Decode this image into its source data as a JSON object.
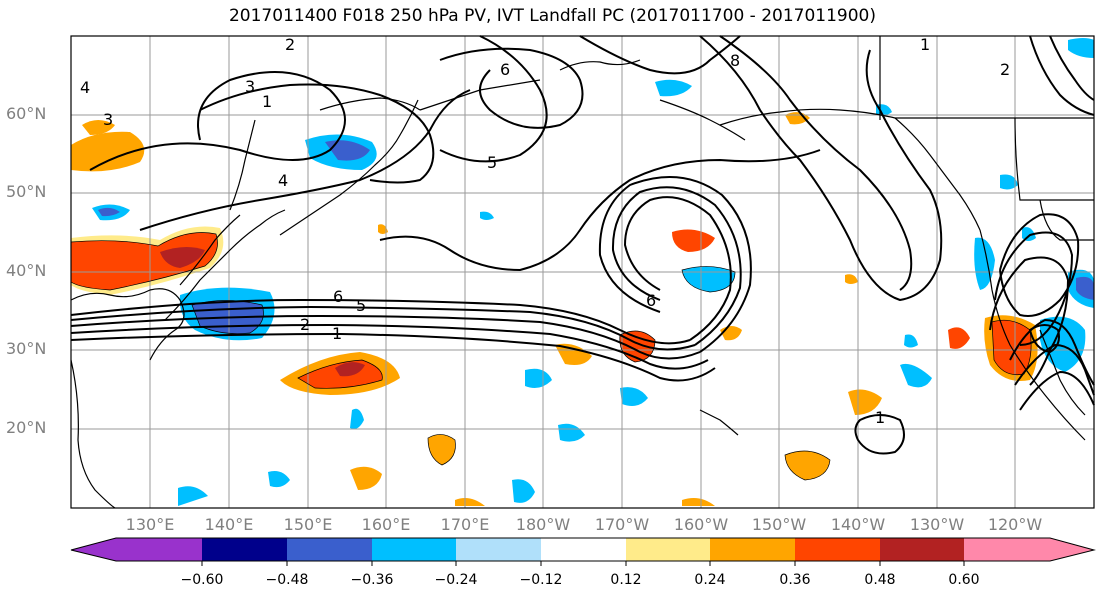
{
  "title": "2017011400 F018 250 hPa PV, IVT Landfall PC (2017011700 - 2017011900)",
  "lat_labels": [
    "60°N",
    "50°N",
    "40°N",
    "30°N",
    "20°N"
  ],
  "lon_labels": [
    "130°E",
    "140°E",
    "150°E",
    "160°E",
    "170°E",
    "180°W",
    "170°W",
    "160°W",
    "150°W",
    "140°W",
    "130°W",
    "120°W"
  ],
  "contour_labels": [
    "2",
    "3",
    "1",
    "4",
    "5",
    "6",
    "6",
    "5",
    "2",
    "1",
    "6",
    "1",
    "8",
    "4",
    "3",
    "2",
    "1"
  ],
  "colorbar": {
    "ticks": [
      "−0.60",
      "−0.48",
      "−0.36",
      "−0.24",
      "−0.12",
      "0.12",
      "0.24",
      "0.36",
      "0.48",
      "0.60"
    ],
    "colors": [
      "#9932cc",
      "#00008b",
      "#3a5fcd",
      "#00bfff",
      "#b0e0fa",
      "#ffffff",
      "#ffeb8a",
      "#ffa500",
      "#ff4500",
      "#b22222",
      "#ff88aa"
    ]
  },
  "colors": {
    "orange": "#ffa500",
    "red_orange": "#ff4500",
    "dark_red": "#b22222",
    "light_blue": "#00bfff",
    "mid_blue": "#3a5fcd",
    "pale_yellow": "#ffeb8a",
    "pale_blue": "#b0e0fa"
  }
}
